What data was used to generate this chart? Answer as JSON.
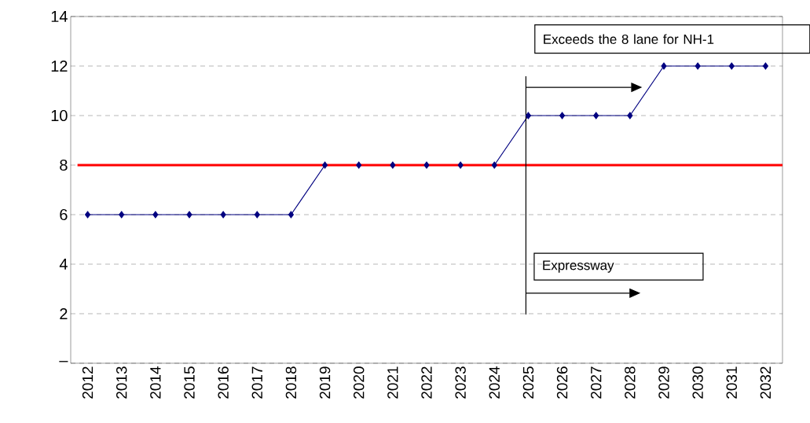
{
  "chart_data": {
    "type": "line",
    "categories": [
      "2012",
      "2013",
      "2014",
      "2015",
      "2016",
      "2017",
      "2018",
      "2019",
      "2020",
      "2021",
      "2022",
      "2023",
      "2024",
      "2025",
      "2026",
      "2027",
      "2028",
      "2029",
      "2030",
      "2031",
      "2032"
    ],
    "series": [
      {
        "color": "#000080",
        "values": [
          6,
          6,
          6,
          6,
          6,
          6,
          6,
          8,
          8,
          8,
          8,
          8,
          8,
          10,
          10,
          10,
          10,
          12,
          12,
          12,
          12
        ]
      }
    ],
    "marker": "diamond",
    "ylim": [
      0,
      14
    ],
    "yticks": [
      {
        "value": 0,
        "label": "–"
      },
      2,
      4,
      6,
      8,
      10,
      12,
      14
    ],
    "grid": "y",
    "ref_lines": [
      {
        "axis": "y",
        "value": 8,
        "color": "#ff0000"
      },
      {
        "axis": "x",
        "value": "2025",
        "color": "#000000"
      }
    ],
    "annotations": [
      "Exceeds the 8 lane for NH-1",
      "Expressway"
    ]
  }
}
